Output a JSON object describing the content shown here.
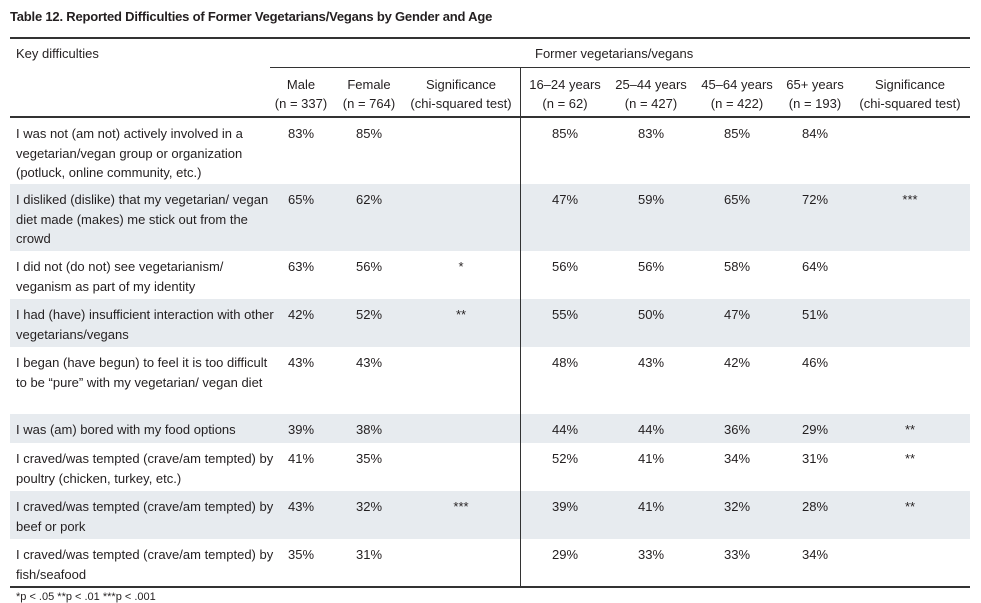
{
  "title": "Table 12. Reported Difficulties of Former Vegetarians/Vegans by Gender and Age",
  "header": {
    "stub": "Key difficulties",
    "group": "Former vegetarians/vegans",
    "columns": [
      {
        "label": "Male",
        "n": "(n = 337)"
      },
      {
        "label": "Female",
        "n": "(n = 764)"
      },
      {
        "label": "Significance",
        "n": "(chi-squared test)"
      },
      {
        "label": "16–24 years",
        "n": "(n = 62)"
      },
      {
        "label": "25–44 years",
        "n": "(n = 427)"
      },
      {
        "label": "45–64 years",
        "n": "(n = 422)"
      },
      {
        "label": "65+ years",
        "n": "(n = 193)"
      },
      {
        "label": "Significance",
        "n": "(chi-squared test)"
      }
    ]
  },
  "rows": [
    {
      "label": "I was not (am not) actively involved in a vegetarian/vegan group or organization (potluck, online community, etc.)",
      "values": [
        "83%",
        "85%",
        "",
        "85%",
        "83%",
        "85%",
        "84%",
        ""
      ]
    },
    {
      "label": "I disliked (dislike) that my vegetarian/ vegan diet made (makes) me stick out from the crowd",
      "values": [
        "65%",
        "62%",
        "",
        "47%",
        "59%",
        "65%",
        "72%",
        "***"
      ]
    },
    {
      "label": "I did not (do not) see vegetarianism/ veganism as part of my identity",
      "values": [
        "63%",
        "56%",
        "*",
        "56%",
        "56%",
        "58%",
        "64%",
        ""
      ]
    },
    {
      "label": "I had (have) insufficient interaction with other vegetarians/vegans",
      "values": [
        "42%",
        "52%",
        "**",
        "55%",
        "50%",
        "47%",
        "51%",
        ""
      ]
    },
    {
      "label": "I began (have begun) to feel it is too difficult to be “pure” with my vegetarian/ vegan diet",
      "values": [
        "43%",
        "43%",
        "",
        "48%",
        "43%",
        "42%",
        "46%",
        ""
      ]
    },
    {
      "label": "I was (am) bored with my food options",
      "values": [
        "39%",
        "38%",
        "",
        "44%",
        "44%",
        "36%",
        "29%",
        "**"
      ]
    },
    {
      "label": "I craved/was tempted (crave/am tempted) by poultry (chicken, turkey, etc.)",
      "values": [
        "41%",
        "35%",
        "",
        "52%",
        "41%",
        "34%",
        "31%",
        "**"
      ]
    },
    {
      "label": "I craved/was tempted (crave/am tempted) by beef or pork",
      "values": [
        "43%",
        "32%",
        "***",
        "39%",
        "41%",
        "32%",
        "28%",
        "**"
      ]
    },
    {
      "label": "I craved/was tempted (crave/am tempted) by fish/seafood",
      "values": [
        "35%",
        "31%",
        "",
        "29%",
        "33%",
        "33%",
        "34%",
        ""
      ]
    }
  ],
  "footnote": "*p < .05 **p < .01 ***p < .001",
  "colors": {
    "shade": "#e7ebef",
    "rule": "#333333"
  }
}
